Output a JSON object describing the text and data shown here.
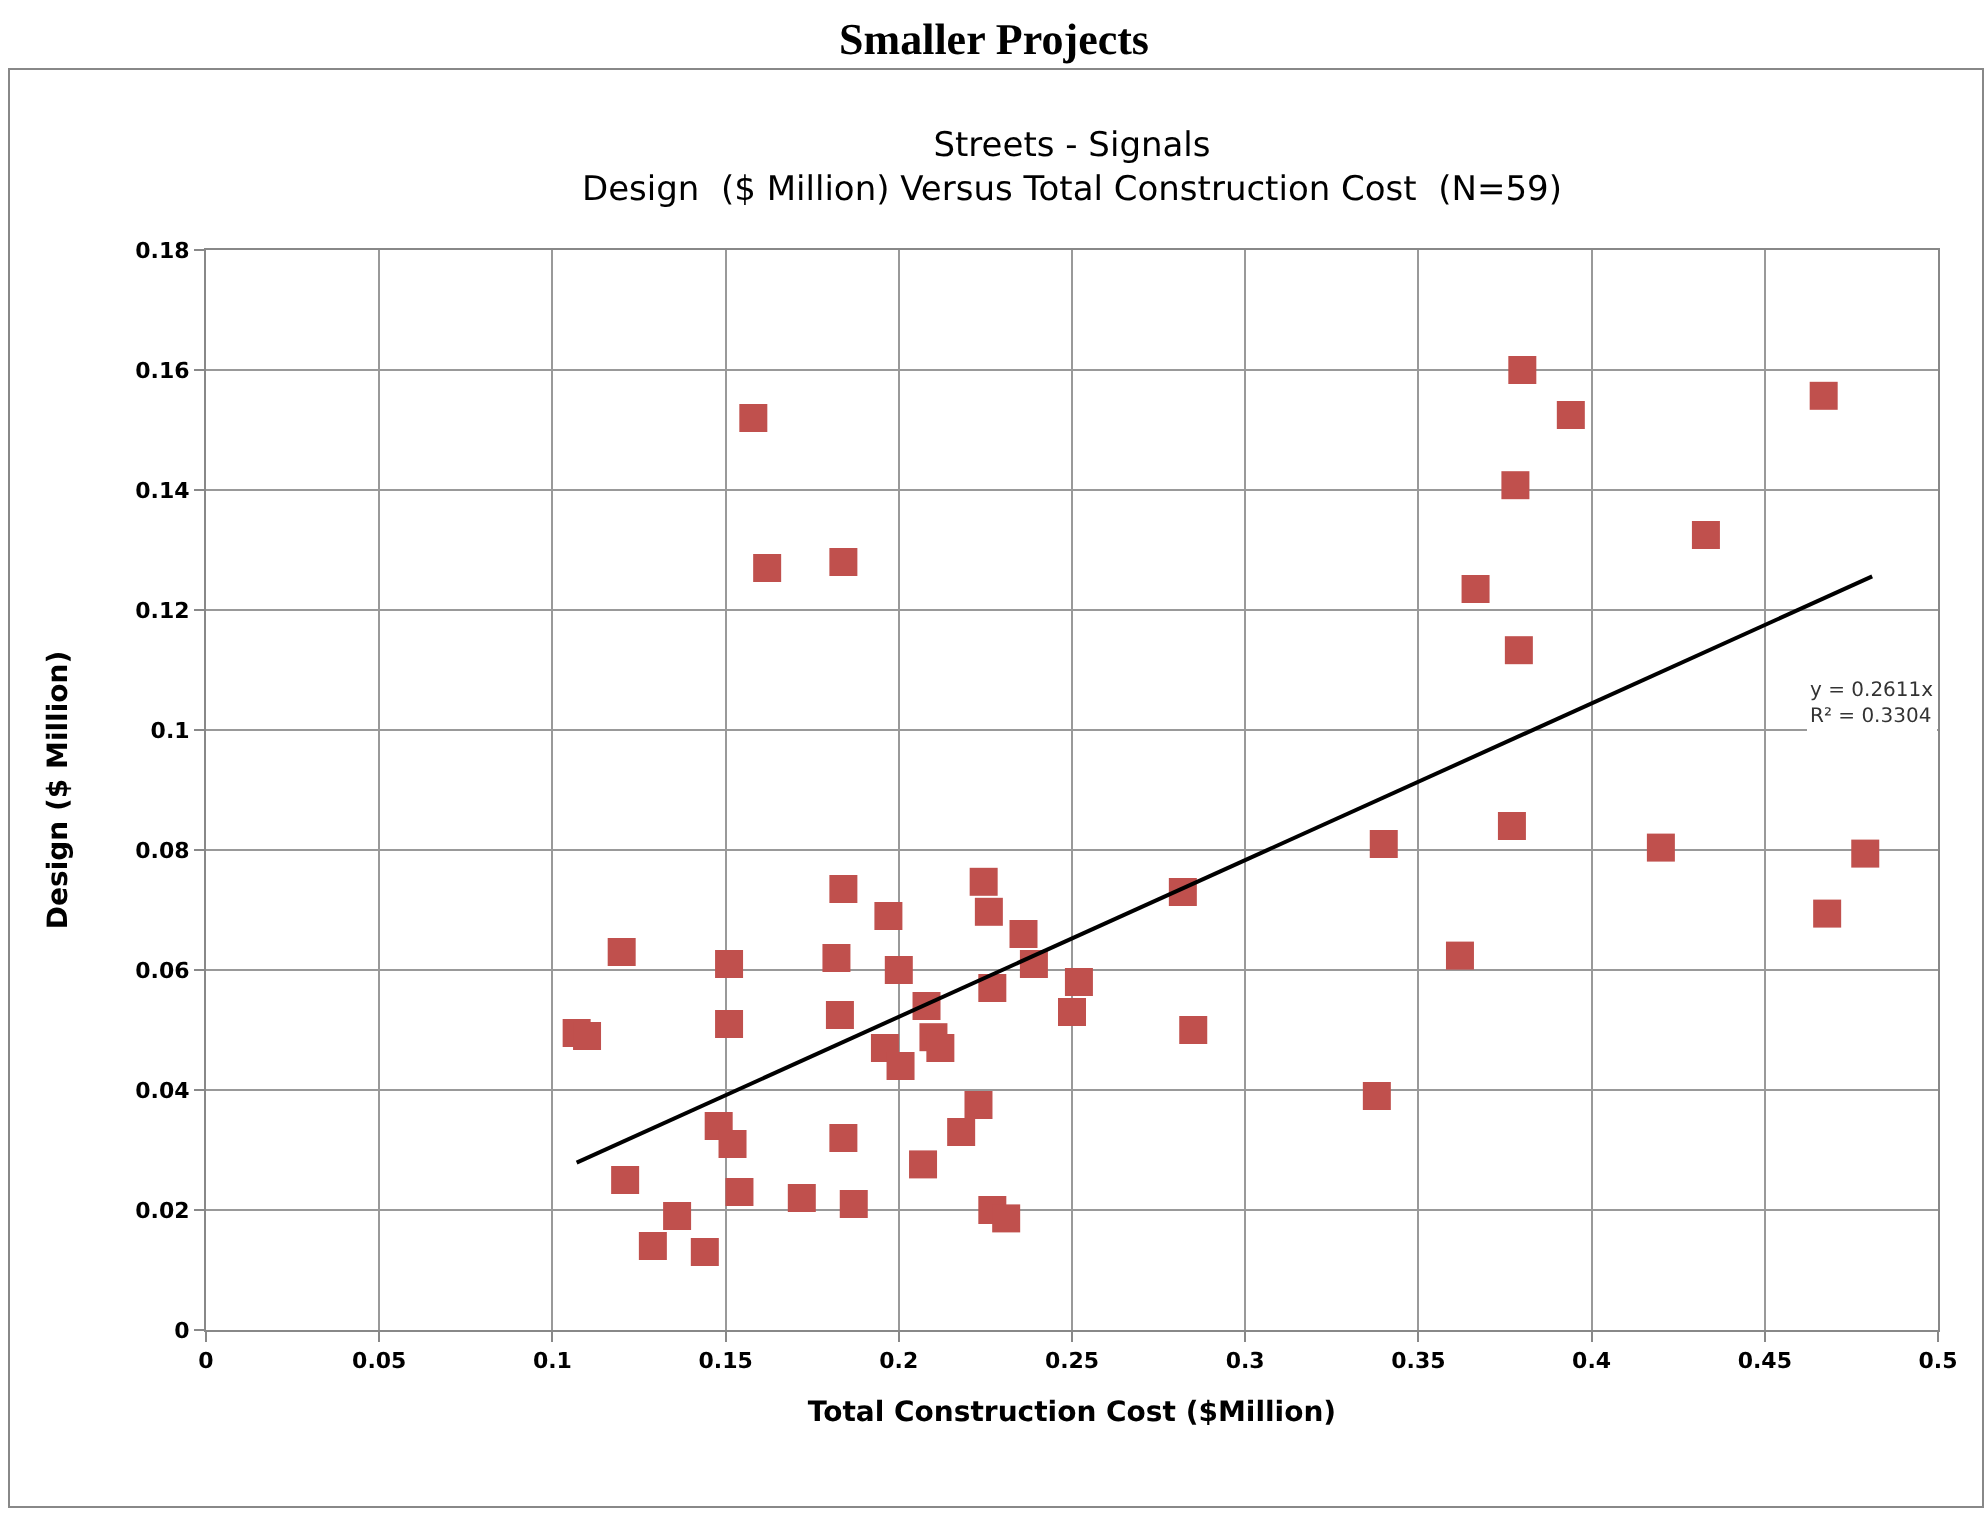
{
  "chart_data": {
    "type": "scatter",
    "title": "Smaller Projects",
    "subtitle": "Streets - Signals\nDesign  ($ Million) Versus Total Construction Cost  (N=59)",
    "xlabel": "Total Construction Cost ($Million)",
    "ylabel": "Design ($ Million)",
    "xlim": [
      0,
      0.5
    ],
    "xticks": [
      0,
      0.05,
      0.1,
      0.15,
      0.2,
      0.25,
      0.3,
      0.35,
      0.4,
      0.45,
      0.5
    ],
    "ylim": [
      0,
      0.18
    ],
    "yticks": [
      0,
      0.02,
      0.04,
      0.06,
      0.08,
      0.1,
      0.12,
      0.14,
      0.16,
      0.18
    ],
    "grid": true,
    "marker": "square",
    "series": [
      {
        "color": "#c0504d",
        "x": [
          0.107,
          0.11,
          0.12,
          0.121,
          0.129,
          0.136,
          0.144,
          0.148,
          0.151,
          0.151,
          0.152,
          0.154,
          0.158,
          0.162,
          0.172,
          0.182,
          0.183,
          0.184,
          0.184,
          0.184,
          0.187,
          0.197,
          0.2245,
          0.226,
          0.236,
          0.2,
          0.239,
          0.252,
          0.227,
          0.208,
          0.25,
          0.21,
          0.212,
          0.196,
          0.2005,
          0.285,
          0.282,
          0.223,
          0.218,
          0.207,
          0.227,
          0.231,
          0.38,
          0.394,
          0.467,
          0.378,
          0.433,
          0.3665,
          0.379,
          0.377,
          0.34,
          0.42,
          0.479,
          0.468,
          0.362,
          0.338
        ],
        "values": [
          0.0495,
          0.049,
          0.063,
          0.025,
          0.014,
          0.019,
          0.013,
          0.034,
          0.061,
          0.051,
          0.031,
          0.023,
          0.152,
          0.127,
          0.022,
          0.062,
          0.0525,
          0.032,
          0.128,
          0.0735,
          0.021,
          0.069,
          0.0747,
          0.0697,
          0.066,
          0.06,
          0.061,
          0.058,
          0.057,
          0.054,
          0.053,
          0.0488,
          0.047,
          0.047,
          0.044,
          0.05,
          0.073,
          0.0375,
          0.033,
          0.0276,
          0.02,
          0.0186,
          0.16,
          0.1525,
          0.1557,
          0.1408,
          0.1325,
          0.1235,
          0.1133,
          0.084,
          0.081,
          0.0804,
          0.0794,
          0.0694,
          0.0624,
          0.039
        ]
      },
      {
        "type": "line",
        "color": "#000000",
        "marker": "none",
        "x": [
          0.107,
          0.481
        ],
        "values": [
          0.0279,
          0.1256
        ]
      }
    ],
    "annotations": [
      "y = 0.2611x\nR² = 0.3304"
    ]
  }
}
